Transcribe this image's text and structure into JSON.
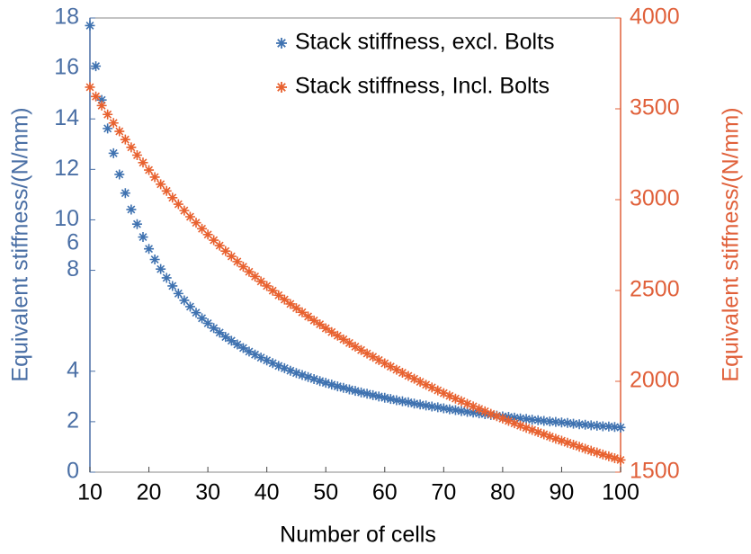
{
  "chart_data": {
    "type": "scatter",
    "xlabel": "Number of cells",
    "ylabel": "Equivalent stiffness/(N/mm)",
    "y2label": "Equivalent stiffness/(N/mm)",
    "annotations": [
      "6"
    ],
    "legend": "upper right",
    "xlim": [
      10,
      100
    ],
    "xticks": [
      10,
      20,
      30,
      40,
      50,
      60,
      70,
      80,
      90,
      100
    ],
    "ylim": [
      0,
      18
    ],
    "yticks": [
      0,
      2,
      4,
      8,
      10,
      12,
      14,
      16,
      18
    ],
    "y2lim": [
      1500,
      4000
    ],
    "y2ticks": [
      1500,
      2000,
      2500,
      3000,
      3500,
      4000
    ],
    "x": [
      10,
      11,
      12,
      13,
      14,
      15,
      16,
      17,
      18,
      19,
      20,
      21,
      22,
      23,
      24,
      25,
      26,
      27,
      28,
      29,
      30,
      31,
      32,
      33,
      34,
      35,
      36,
      37,
      38,
      39,
      40,
      41,
      42,
      43,
      44,
      45,
      46,
      47,
      48,
      49,
      50,
      51,
      52,
      53,
      54,
      55,
      56,
      57,
      58,
      59,
      60,
      61,
      62,
      63,
      64,
      65,
      66,
      67,
      68,
      69,
      70,
      71,
      72,
      73,
      74,
      75,
      76,
      77,
      78,
      79,
      80,
      81,
      82,
      83,
      84,
      85,
      86,
      87,
      88,
      89,
      90,
      91,
      92,
      93,
      94,
      95,
      96,
      97,
      98,
      99,
      100
    ],
    "series": [
      {
        "name": "Stack stiffness, excl. Bolts",
        "color": "#3f72b0",
        "axis": "y",
        "values": [
          17.7,
          16.09,
          14.75,
          13.62,
          12.64,
          11.8,
          11.06,
          10.41,
          9.83,
          9.32,
          8.85,
          8.43,
          8.05,
          7.7,
          7.38,
          7.08,
          6.81,
          6.56,
          6.32,
          6.1,
          5.9,
          5.71,
          5.53,
          5.36,
          5.21,
          5.06,
          4.92,
          4.78,
          4.66,
          4.54,
          4.43,
          4.32,
          4.21,
          4.12,
          4.02,
          3.93,
          3.85,
          3.77,
          3.69,
          3.61,
          3.54,
          3.47,
          3.4,
          3.34,
          3.28,
          3.22,
          3.16,
          3.11,
          3.05,
          3.0,
          2.95,
          2.9,
          2.85,
          2.81,
          2.77,
          2.72,
          2.68,
          2.64,
          2.6,
          2.57,
          2.53,
          2.49,
          2.46,
          2.42,
          2.39,
          2.36,
          2.33,
          2.3,
          2.27,
          2.24,
          2.21,
          2.19,
          2.16,
          2.13,
          2.11,
          2.08,
          2.06,
          2.03,
          2.01,
          1.99,
          1.97,
          1.95,
          1.92,
          1.9,
          1.88,
          1.86,
          1.84,
          1.82,
          1.81,
          1.79,
          1.77
        ]
      },
      {
        "name": "Stack stiffness, Incl. Bolts",
        "color": "#e8612f",
        "axis": "y2",
        "values": [
          3619,
          3568,
          3518,
          3469,
          3422,
          3376,
          3331,
          3288,
          3245,
          3204,
          3163,
          3124,
          3085,
          3048,
          3011,
          2975,
          2940,
          2906,
          2873,
          2840,
          2808,
          2777,
          2747,
          2717,
          2688,
          2659,
          2631,
          2603,
          2577,
          2550,
          2525,
          2499,
          2474,
          2450,
          2426,
          2403,
          2380,
          2357,
          2335,
          2314,
          2292,
          2271,
          2251,
          2231,
          2211,
          2191,
          2172,
          2153,
          2135,
          2117,
          2099,
          2081,
          2064,
          2047,
          2030,
          2014,
          1997,
          1981,
          1966,
          1950,
          1935,
          1920,
          1905,
          1891,
          1876,
          1862,
          1848,
          1835,
          1821,
          1808,
          1795,
          1782,
          1769,
          1756,
          1744,
          1732,
          1720,
          1708,
          1696,
          1684,
          1673,
          1662,
          1651,
          1640,
          1629,
          1618,
          1608,
          1597,
          1587,
          1577,
          1567
        ]
      }
    ]
  }
}
